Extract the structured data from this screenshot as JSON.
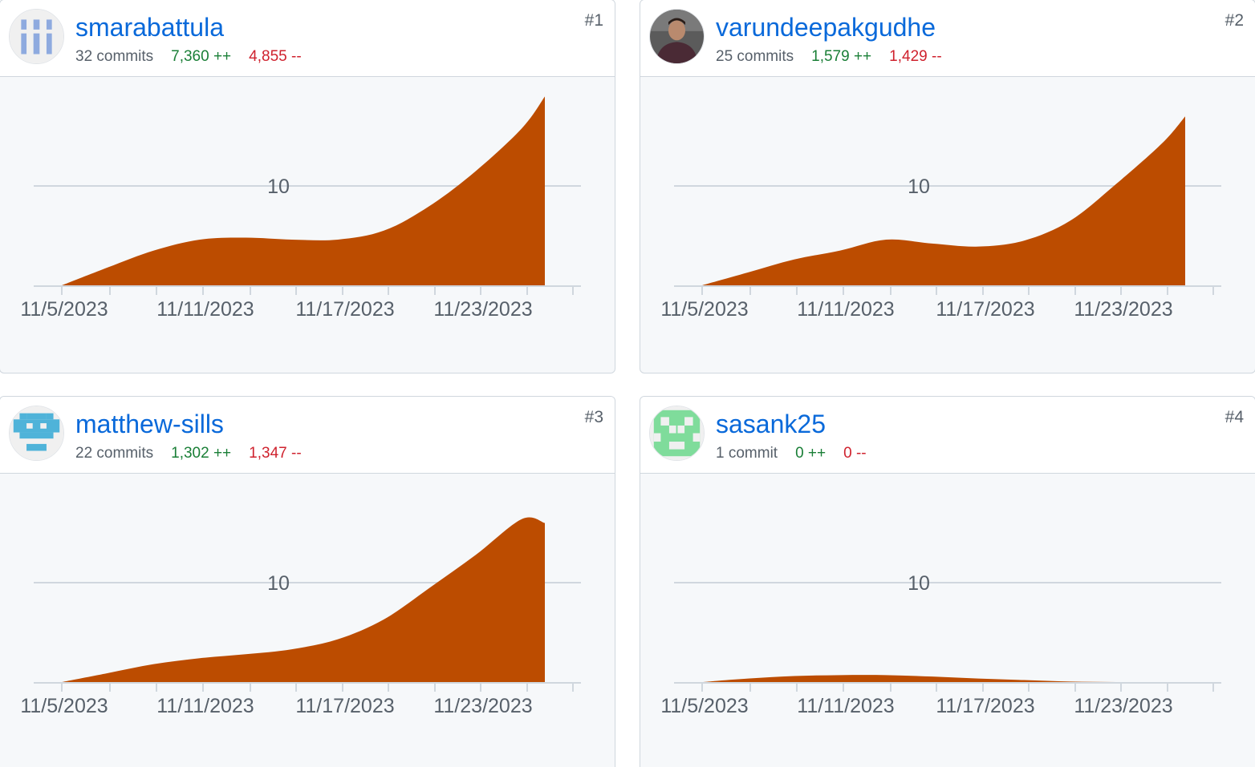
{
  "contributors": [
    {
      "username": "smarabattula",
      "rank": "#1",
      "commits": "32 commits",
      "additions": "7,360 ++",
      "deletions": "4,855 --",
      "avatar": "identicon-blue-bars",
      "avatar_color": "#8eaadf"
    },
    {
      "username": "varundeepakgudhe",
      "rank": "#2",
      "commits": "25 commits",
      "additions": "1,579 ++",
      "deletions": "1,429 --",
      "avatar": "photo-avatar",
      "avatar_color": "#4a2a35"
    },
    {
      "username": "matthew-sills",
      "rank": "#3",
      "commits": "22 commits",
      "additions": "1,302 ++",
      "deletions": "1,347 --",
      "avatar": "identicon-cyan",
      "avatar_color": "#4fb3d9"
    },
    {
      "username": "sasank25",
      "rank": "#4",
      "commits": "1 commit",
      "additions": "0 ++",
      "deletions": "0 --",
      "avatar": "identicon-green",
      "avatar_color": "#7fdc9b"
    }
  ],
  "chart_data": [
    {
      "type": "area",
      "color": "#bc4c00",
      "y_tick": "10",
      "x_tick_labels": [
        "11/5/2023",
        "11/11/2023",
        "11/17/2023",
        "11/23/2023"
      ],
      "x": [
        "11/5/2023",
        "11/7/2023",
        "11/9/2023",
        "11/11/2023",
        "11/13/2023",
        "11/15/2023",
        "11/17/2023",
        "11/19/2023",
        "11/21/2023",
        "11/23/2023",
        "11/25/2023",
        "11/26/2023"
      ],
      "values": [
        0,
        1.8,
        3.5,
        4.6,
        4.8,
        4.6,
        4.6,
        5.5,
        8.0,
        11.5,
        15.8,
        19.0
      ]
    },
    {
      "type": "area",
      "color": "#bc4c00",
      "y_tick": "10",
      "x_tick_labels": [
        "11/5/2023",
        "11/11/2023",
        "11/17/2023",
        "11/23/2023"
      ],
      "x": [
        "11/5/2023",
        "11/7/2023",
        "11/9/2023",
        "11/11/2023",
        "11/13/2023",
        "11/15/2023",
        "11/17/2023",
        "11/19/2023",
        "11/21/2023",
        "11/23/2023",
        "11/25/2023",
        "11/26/2023"
      ],
      "values": [
        0,
        1.3,
        2.6,
        3.5,
        4.6,
        4.2,
        3.9,
        4.5,
        6.5,
        10.2,
        14.3,
        17.0
      ]
    },
    {
      "type": "area",
      "color": "#bc4c00",
      "y_tick": "10",
      "x_tick_labels": [
        "11/5/2023",
        "11/11/2023",
        "11/17/2023",
        "11/23/2023"
      ],
      "x": [
        "11/5/2023",
        "11/7/2023",
        "11/9/2023",
        "11/11/2023",
        "11/13/2023",
        "11/15/2023",
        "11/17/2023",
        "11/19/2023",
        "11/21/2023",
        "11/23/2023",
        "11/25/2023",
        "11/26/2023"
      ],
      "values": [
        0,
        0.9,
        1.8,
        2.4,
        2.8,
        3.3,
        4.3,
        6.3,
        9.5,
        12.8,
        16.4,
        16.0
      ]
    },
    {
      "type": "area",
      "color": "#bc4c00",
      "y_tick": "10",
      "x_tick_labels": [
        "11/5/2023",
        "11/11/2023",
        "11/17/2023",
        "11/23/2023"
      ],
      "x": [
        "11/5/2023",
        "11/7/2023",
        "11/9/2023",
        "11/11/2023",
        "11/13/2023",
        "11/15/2023",
        "11/17/2023",
        "11/19/2023",
        "11/21/2023",
        "11/23/2023",
        "11/25/2023",
        "11/26/2023"
      ],
      "values": [
        0,
        0.35,
        0.6,
        0.7,
        0.7,
        0.55,
        0.35,
        0.2,
        0.05,
        0,
        0,
        0
      ]
    }
  ]
}
